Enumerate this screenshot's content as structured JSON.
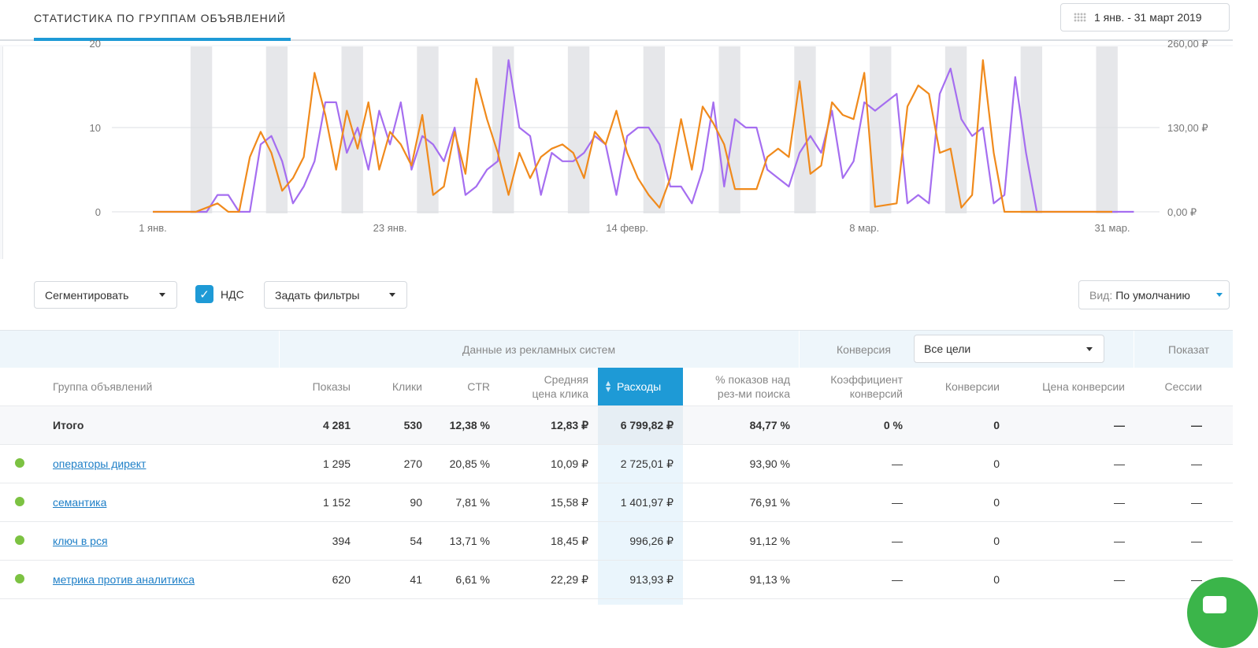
{
  "header": {
    "tab_title": "СТАТИСТИКА ПО ГРУППАМ ОБЪЯВЛЕНИЙ",
    "date_range": "1 янв. - 31 март 2019",
    "calendar_icon": "calendar-icon"
  },
  "chart_data": {
    "type": "line",
    "x_tick_labels": [
      "1 янв.",
      "23 янв.",
      "14 февр.",
      "8 мар.",
      "31 мар."
    ],
    "y_left_ticks": [
      "0",
      "10",
      "20"
    ],
    "y_right_ticks": [
      "0,00 ₽",
      "130,00 ₽",
      "260,00 ₽"
    ],
    "ylim_left": [
      0,
      20
    ],
    "ylim_right": [
      0,
      260
    ],
    "grid": "horizontal",
    "series": [
      {
        "color": "#a56ef0",
        "axis": "left",
        "values": [
          0,
          0,
          0,
          0,
          0,
          0,
          2,
          2,
          0,
          0,
          8,
          9,
          6,
          1,
          3,
          6,
          13,
          13,
          7,
          10,
          5,
          12,
          8,
          13,
          5,
          9,
          8,
          6,
          10,
          2,
          3,
          5,
          6,
          18,
          10,
          9,
          2,
          7,
          6,
          6,
          7,
          9,
          8,
          2,
          9,
          10,
          10,
          8,
          3,
          3,
          1,
          5,
          13,
          3,
          11,
          10,
          10,
          5,
          4,
          3,
          7,
          9,
          7,
          12,
          4,
          6,
          13,
          12,
          13,
          14,
          1,
          2,
          1,
          14,
          17,
          11,
          9,
          10,
          1,
          2,
          16,
          7,
          0,
          0,
          0,
          0,
          0,
          0,
          0,
          0,
          0,
          0
        ]
      },
      {
        "color": "#f08a1c",
        "axis": "left",
        "values": [
          0,
          0,
          0,
          0,
          0,
          0.5,
          1,
          0,
          0,
          6.5,
          9.5,
          7,
          2.5,
          4,
          6.5,
          16.5,
          11.5,
          5,
          12,
          7.5,
          13,
          5,
          9.5,
          8,
          5.5,
          11.5,
          2,
          3,
          9.5,
          4.5,
          15.8,
          11,
          7,
          2,
          7,
          4,
          6.5,
          7.5,
          8,
          7,
          4,
          9.5,
          8,
          12,
          7,
          4,
          2,
          0.5,
          4,
          11,
          5,
          12.5,
          10.5,
          8,
          2.7,
          2.7,
          2.7,
          6.5,
          7.5,
          6.5,
          15.5,
          4.5,
          5.5,
          13,
          11.5,
          11,
          16.5,
          0.6,
          0.8,
          1,
          12.5,
          15,
          14,
          7,
          7.5,
          0.5,
          2,
          18,
          7,
          0,
          0,
          0,
          0,
          0,
          0,
          0,
          0,
          0,
          0,
          0
        ]
      }
    ],
    "weekend_bands": true
  },
  "controls": {
    "segment": "Сегментировать",
    "nds": "НДС",
    "filters": "Задать фильтры",
    "view_label": "Вид:",
    "view_value": "По умолчанию"
  },
  "table": {
    "group_ad_systems": "Данные из рекламных систем",
    "group_conversion": "Конверсия",
    "conversion_select": "Все цели",
    "group_indicators": "Показат",
    "columns": {
      "group": "Группа объявлений",
      "shows": "Показы",
      "clicks": "Клики",
      "ctr": "CTR",
      "avg_cpc_1": "Средняя",
      "avg_cpc_2": "цена клика",
      "cost": "Расходы",
      "pct_1": "% показов над",
      "pct_2": "рез-ми поиска",
      "conv_rate_1": "Коэффициент",
      "conv_rate_2": "конверсий",
      "conversions": "Конверсии",
      "conv_price": "Цена конверсии",
      "sessions": "Сессии"
    },
    "total": {
      "name": "Итого",
      "shows": "4 281",
      "clicks": "530",
      "ctr": "12,38 %",
      "cpc": "12,83 ₽",
      "cost": "6 799,82 ₽",
      "pct": "84,77 %",
      "conv_rate": "0 %",
      "conversions": "0",
      "conv_price": "—",
      "sessions": "—"
    },
    "rows": [
      {
        "name": "операторы директ",
        "shows": "1 295",
        "clicks": "270",
        "ctr": "20,85 %",
        "cpc": "10,09 ₽",
        "cost": "2 725,01 ₽",
        "pct": "93,90 %",
        "conv_rate": "—",
        "conversions": "0",
        "conv_price": "—",
        "sessions": "—"
      },
      {
        "name": "семантика",
        "shows": "1 152",
        "clicks": "90",
        "ctr": "7,81 %",
        "cpc": "15,58 ₽",
        "cost": "1 401,97 ₽",
        "pct": "76,91 %",
        "conv_rate": "—",
        "conversions": "0",
        "conv_price": "—",
        "sessions": "—"
      },
      {
        "name": "ключ в рся",
        "shows": "394",
        "clicks": "54",
        "ctr": "13,71 %",
        "cpc": "18,45 ₽",
        "cost": "996,26 ₽",
        "pct": "91,12 %",
        "conv_rate": "—",
        "conversions": "0",
        "conv_price": "—",
        "sessions": "—"
      },
      {
        "name": "метрика против аналитикса",
        "shows": "620",
        "clicks": "41",
        "ctr": "6,61 %",
        "cpc": "22,29 ₽",
        "cost": "913,93 ₽",
        "pct": "91,13 %",
        "conv_rate": "—",
        "conversions": "0",
        "conv_price": "—",
        "sessions": "—"
      }
    ]
  },
  "status_colors": {
    "active": "#7cc242",
    "accent": "#1e9ad6"
  }
}
